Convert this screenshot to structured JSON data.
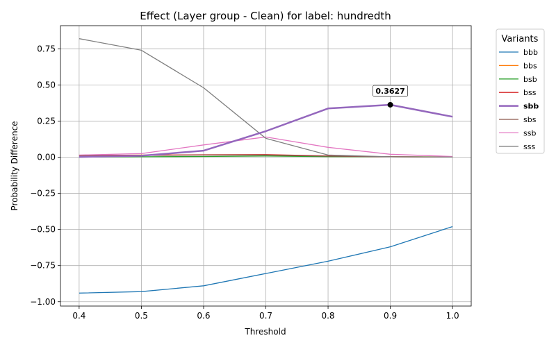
{
  "chart_data": {
    "type": "line",
    "title": "Effect (Layer group - Clean) for label: hundredth",
    "xlabel": "Threshold",
    "ylabel": "Probability Difference",
    "x": [
      0.4,
      0.5,
      0.6,
      0.7,
      0.8,
      0.9,
      1.0
    ],
    "xlim": [
      0.37,
      1.03
    ],
    "ylim": [
      -1.03,
      0.91
    ],
    "x_ticks": [
      "0.4",
      "0.5",
      "0.6",
      "0.7",
      "0.8",
      "0.9",
      "1.0"
    ],
    "y_ticks": [
      {
        "value": 0.75,
        "label": "0.75"
      },
      {
        "value": 0.5,
        "label": "0.50"
      },
      {
        "value": 0.25,
        "label": "0.25"
      },
      {
        "value": 0.0,
        "label": "0.00"
      },
      {
        "value": -0.25,
        "label": "−0.25"
      },
      {
        "value": -0.5,
        "label": "−0.50"
      },
      {
        "value": -0.75,
        "label": "−0.75"
      },
      {
        "value": -1.0,
        "label": "−1.00"
      }
    ],
    "grid": true,
    "legend": {
      "title": "Variants",
      "placement": "outside-right-top"
    },
    "series": [
      {
        "name": "bbb",
        "color": "#1f77b4",
        "highlight": false,
        "values": [
          -0.94,
          -0.93,
          -0.89,
          -0.805,
          -0.72,
          -0.62,
          -0.48
        ]
      },
      {
        "name": "bbs",
        "color": "#ff7f0e",
        "highlight": false,
        "values": [
          0.01,
          0.015,
          0.015,
          0.015,
          0.005,
          0.003,
          0.002
        ]
      },
      {
        "name": "bsb",
        "color": "#2ca02c",
        "highlight": false,
        "values": [
          0.0,
          0.003,
          0.005,
          0.008,
          0.004,
          0.003,
          0.002
        ]
      },
      {
        "name": "bss",
        "color": "#d62728",
        "highlight": false,
        "values": [
          0.012,
          0.014,
          0.017,
          0.018,
          0.009,
          0.003,
          0.001
        ]
      },
      {
        "name": "sbb",
        "color": "#9467bd",
        "highlight": true,
        "values": [
          0.002,
          0.01,
          0.045,
          0.18,
          0.337,
          0.3627,
          0.28
        ]
      },
      {
        "name": "sbs",
        "color": "#8c564b",
        "highlight": false,
        "values": [
          0.01,
          0.012,
          0.015,
          0.015,
          0.007,
          0.003,
          0.001
        ]
      },
      {
        "name": "ssb",
        "color": "#e377c2",
        "highlight": false,
        "values": [
          0.015,
          0.025,
          0.085,
          0.14,
          0.068,
          0.02,
          0.005
        ]
      },
      {
        "name": "sss",
        "color": "#7f7f7f",
        "highlight": false,
        "values": [
          0.82,
          0.74,
          0.48,
          0.13,
          0.015,
          0.003,
          0.001
        ]
      }
    ],
    "annotation": {
      "x": 0.9,
      "y": 0.3627,
      "label": "0.3627"
    }
  }
}
